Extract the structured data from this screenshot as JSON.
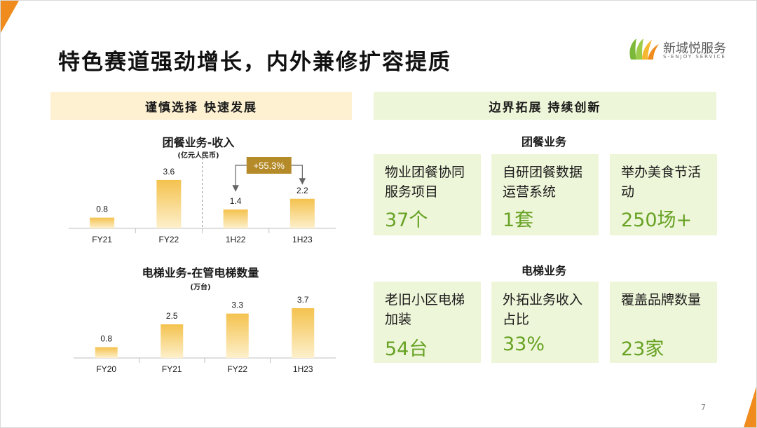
{
  "title": "特色赛道强劲增长，内外兼修扩容提质",
  "logo": {
    "name": "新城悦服务",
    "sub": "S-ENJOY SERVICE"
  },
  "left_band": "谨慎选择 快速发展",
  "right_band": "边界拓展 持续创新",
  "colors": {
    "accent_orange": "#f08c1e",
    "bar_gold": "#f5c85a",
    "value_green": "#67a224",
    "callout_gold": "#b58b2a"
  },
  "chart_data": [
    {
      "type": "bar",
      "title": "团餐业务-收入",
      "unit": "(亿元人民币)",
      "categories": [
        "FY21",
        "FY22",
        "1H22",
        "1H23"
      ],
      "values": [
        0.8,
        3.6,
        1.4,
        2.2
      ],
      "value_labels": [
        "0.8",
        "3.6",
        "1.4",
        "2.2"
      ],
      "annotation": "+55.3%"
    },
    {
      "type": "bar",
      "title": "电梯业务-在管电梯数量",
      "unit": "(万台)",
      "categories": [
        "FY20",
        "FY21",
        "FY22",
        "1H23"
      ],
      "values": [
        0.8,
        2.5,
        3.3,
        3.7
      ],
      "value_labels": [
        "0.8",
        "2.5",
        "3.3",
        "3.7"
      ]
    }
  ],
  "catering": {
    "title": "团餐业务",
    "cards": [
      {
        "label": "物业团餐协同服务项目",
        "value": "37个"
      },
      {
        "label": "自研团餐数据运营系统",
        "value": "1套"
      },
      {
        "label": "举办美食节活动",
        "value": "250场+"
      }
    ]
  },
  "elevator": {
    "title": "电梯业务",
    "cards": [
      {
        "label": "老旧小区电梯加装",
        "value": "54台"
      },
      {
        "label": "外拓业务收入占比",
        "value": "33%"
      },
      {
        "label": "覆盖品牌数量",
        "value": "23家"
      }
    ]
  },
  "page_number": "7"
}
